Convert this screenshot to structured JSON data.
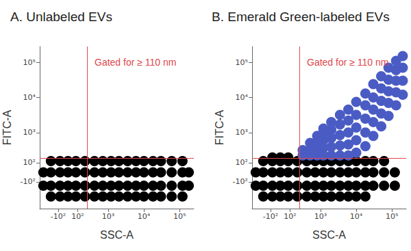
{
  "chart_data": [
    {
      "type": "scatter",
      "title": "A. Unlabeled EVs",
      "x_label": "SSC-A",
      "y_label": "FITC-A",
      "log": true,
      "grid": false,
      "tick_labels": true,
      "xlim": [
        -450,
        250000
      ],
      "ylim": [
        -800,
        280000
      ],
      "xticks": [
        {
          "value": -100,
          "label": "-10²"
        },
        {
          "value": 100,
          "label": "10²"
        },
        {
          "value": 1000,
          "label": "10³"
        },
        {
          "value": 10000,
          "label": "10⁴"
        },
        {
          "value": 100000,
          "label": "10⁵"
        }
      ],
      "yticks": [
        {
          "value": -100,
          "label": "-10²"
        },
        {
          "value": 100,
          "label": "10²"
        },
        {
          "value": 1000,
          "label": "10³"
        },
        {
          "value": 10000,
          "label": "10⁴"
        },
        {
          "value": 100000,
          "label": "10⁵"
        }
      ],
      "gate": {
        "x": 230,
        "y": 160
      },
      "annotation": "Gated for ≥ 110 nm",
      "series": [
        {
          "color": "#000000",
          "marker": "circle",
          "values": [
            [
              -350,
              -150
            ],
            [
              -350,
              0
            ],
            [
              -200,
              -350
            ],
            [
              -200,
              -150
            ],
            [
              -200,
              0
            ],
            [
              -200,
              120
            ],
            [
              -80,
              -350
            ],
            [
              -80,
              -150
            ],
            [
              -80,
              0
            ],
            [
              -80,
              120
            ],
            [
              0,
              -350
            ],
            [
              0,
              -150
            ],
            [
              0,
              0
            ],
            [
              0,
              120
            ],
            [
              80,
              -350
            ],
            [
              80,
              -150
            ],
            [
              80,
              0
            ],
            [
              80,
              120
            ],
            [
              200,
              -350
            ],
            [
              200,
              -150
            ],
            [
              200,
              0
            ],
            [
              200,
              120
            ],
            [
              400,
              -350
            ],
            [
              400,
              -150
            ],
            [
              400,
              0
            ],
            [
              400,
              120
            ],
            [
              700,
              -350
            ],
            [
              700,
              -150
            ],
            [
              700,
              0
            ],
            [
              700,
              120
            ],
            [
              1200,
              -350
            ],
            [
              1200,
              -150
            ],
            [
              1200,
              0
            ],
            [
              1200,
              120
            ],
            [
              2000,
              -350
            ],
            [
              2000,
              -150
            ],
            [
              2000,
              0
            ],
            [
              2000,
              120
            ],
            [
              3500,
              -350
            ],
            [
              3500,
              -150
            ],
            [
              3500,
              0
            ],
            [
              3500,
              120
            ],
            [
              6000,
              -350
            ],
            [
              6000,
              -150
            ],
            [
              6000,
              0
            ],
            [
              6000,
              120
            ],
            [
              10000,
              -350
            ],
            [
              10000,
              -150
            ],
            [
              10000,
              0
            ],
            [
              10000,
              120
            ],
            [
              18000,
              -350
            ],
            [
              18000,
              -150
            ],
            [
              18000,
              0
            ],
            [
              18000,
              120
            ],
            [
              30000,
              -350
            ],
            [
              30000,
              -150
            ],
            [
              30000,
              0
            ],
            [
              30000,
              120
            ],
            [
              60000,
              -350
            ],
            [
              60000,
              -150
            ],
            [
              60000,
              0
            ],
            [
              60000,
              120
            ],
            [
              120000,
              -350
            ],
            [
              120000,
              -150
            ],
            [
              120000,
              0
            ],
            [
              120000,
              120
            ],
            [
              180000,
              -150
            ],
            [
              180000,
              0
            ]
          ]
        }
      ]
    },
    {
      "type": "scatter",
      "title": "B. Emerald Green-labeled EVs",
      "x_label": "SSC-A",
      "y_label": "FITC-A",
      "log": true,
      "grid": false,
      "tick_labels": true,
      "xlim": [
        -450,
        250000
      ],
      "ylim": [
        -800,
        280000
      ],
      "xticks": [
        {
          "value": -100,
          "label": "-10²"
        },
        {
          "value": 100,
          "label": "10²"
        },
        {
          "value": 1000,
          "label": "10³"
        },
        {
          "value": 10000,
          "label": "10⁴"
        },
        {
          "value": 100000,
          "label": "10⁵"
        }
      ],
      "yticks": [
        {
          "value": -100,
          "label": "-10²"
        },
        {
          "value": 100,
          "label": "10²"
        },
        {
          "value": 1000,
          "label": "10³"
        },
        {
          "value": 10000,
          "label": "10⁴"
        },
        {
          "value": 100000,
          "label": "10⁵"
        }
      ],
      "gate": {
        "x": 230,
        "y": 160
      },
      "annotation": "Gated for ≥ 110 nm",
      "series": [
        {
          "color": "#000000",
          "marker": "circle",
          "values": [
            [
              -350,
              -150
            ],
            [
              -350,
              0
            ],
            [
              -200,
              -350
            ],
            [
              -200,
              -150
            ],
            [
              -200,
              0
            ],
            [
              -200,
              120
            ],
            [
              -80,
              -350
            ],
            [
              -80,
              -150
            ],
            [
              -80,
              0
            ],
            [
              -80,
              120
            ],
            [
              -80,
              170
            ],
            [
              0,
              -350
            ],
            [
              0,
              -150
            ],
            [
              0,
              0
            ],
            [
              0,
              120
            ],
            [
              0,
              170
            ],
            [
              80,
              -350
            ],
            [
              80,
              -150
            ],
            [
              80,
              0
            ],
            [
              80,
              120
            ],
            [
              80,
              170
            ],
            [
              200,
              -350
            ],
            [
              200,
              -150
            ],
            [
              200,
              0
            ],
            [
              200,
              120
            ],
            [
              400,
              -350
            ],
            [
              400,
              -150
            ],
            [
              400,
              0
            ],
            [
              400,
              120
            ],
            [
              700,
              -350
            ],
            [
              700,
              -150
            ],
            [
              700,
              0
            ],
            [
              700,
              120
            ],
            [
              1200,
              -350
            ],
            [
              1200,
              -150
            ],
            [
              1200,
              0
            ],
            [
              1200,
              120
            ],
            [
              2000,
              -350
            ],
            [
              2000,
              -150
            ],
            [
              2000,
              0
            ],
            [
              2000,
              120
            ],
            [
              3500,
              -350
            ],
            [
              3500,
              -150
            ],
            [
              3500,
              0
            ],
            [
              3500,
              120
            ],
            [
              6000,
              -350
            ],
            [
              6000,
              -150
            ],
            [
              6000,
              0
            ],
            [
              6000,
              120
            ],
            [
              10000,
              -350
            ],
            [
              10000,
              -150
            ],
            [
              10000,
              0
            ],
            [
              10000,
              120
            ],
            [
              18000,
              -350
            ],
            [
              18000,
              -150
            ],
            [
              18000,
              0
            ],
            [
              18000,
              120
            ],
            [
              30000,
              -150
            ],
            [
              30000,
              0
            ],
            [
              30000,
              120
            ],
            [
              60000,
              -150
            ],
            [
              60000,
              0
            ],
            [
              60000,
              120
            ],
            [
              120000,
              -150
            ],
            [
              120000,
              0
            ]
          ]
        },
        {
          "color": "#4a5cc4",
          "marker": "circle",
          "values": [
            [
              300,
              200
            ],
            [
              300,
              300
            ],
            [
              500,
              200
            ],
            [
              500,
              320
            ],
            [
              500,
              500
            ],
            [
              800,
              200
            ],
            [
              800,
              330
            ],
            [
              800,
              550
            ],
            [
              800,
              800
            ],
            [
              1200,
              200
            ],
            [
              1200,
              350
            ],
            [
              1200,
              600
            ],
            [
              1200,
              1000
            ],
            [
              1200,
              1300
            ],
            [
              2000,
              200
            ],
            [
              2000,
              380
            ],
            [
              2000,
              700
            ],
            [
              2000,
              1200
            ],
            [
              2000,
              2000
            ],
            [
              3500,
              200
            ],
            [
              3500,
              420
            ],
            [
              3500,
              850
            ],
            [
              3500,
              1700
            ],
            [
              3500,
              3200
            ],
            [
              6000,
              200
            ],
            [
              6000,
              450
            ],
            [
              6000,
              1000
            ],
            [
              6000,
              2200
            ],
            [
              6000,
              4500
            ],
            [
              10000,
              250
            ],
            [
              10000,
              600
            ],
            [
              10000,
              1400
            ],
            [
              10000,
              3200
            ],
            [
              10000,
              7500
            ],
            [
              18000,
              400
            ],
            [
              18000,
              1000
            ],
            [
              18000,
              2500
            ],
            [
              18000,
              6000
            ],
            [
              18000,
              13000
            ],
            [
              30000,
              800
            ],
            [
              30000,
              2000
            ],
            [
              30000,
              4500
            ],
            [
              30000,
              10000
            ],
            [
              30000,
              24000
            ],
            [
              50000,
              1500
            ],
            [
              50000,
              3500
            ],
            [
              50000,
              8000
            ],
            [
              50000,
              18000
            ],
            [
              50000,
              40000
            ],
            [
              80000,
              3000
            ],
            [
              80000,
              7000
            ],
            [
              80000,
              15000
            ],
            [
              80000,
              32000
            ],
            [
              80000,
              70000
            ],
            [
              130000,
              6000
            ],
            [
              130000,
              14000
            ],
            [
              130000,
              30000
            ],
            [
              130000,
              60000
            ],
            [
              130000,
              110000
            ],
            [
              200000,
              12000
            ],
            [
              200000,
              30000
            ],
            [
              200000,
              70000
            ],
            [
              200000,
              150000
            ]
          ]
        }
      ]
    }
  ]
}
